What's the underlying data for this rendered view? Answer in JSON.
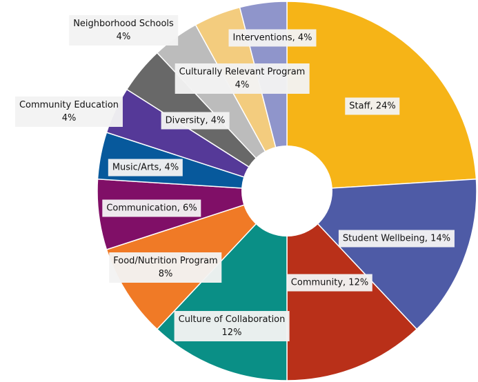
{
  "chart_data": {
    "type": "pie",
    "variant": "donut",
    "title": "",
    "slices": [
      {
        "label": "Staff",
        "value": 24,
        "display": "Staff, 24%",
        "color": "#F6B417"
      },
      {
        "label": "Student Wellbeing",
        "value": 14,
        "display": "Student Wellbeing, 14%",
        "color": "#4E5BA6"
      },
      {
        "label": "Community",
        "value": 12,
        "display": "Community, 12%",
        "color": "#B93019"
      },
      {
        "label": "Culture of Collaboration",
        "value": 12,
        "display": "Culture of Collaboration, 12%",
        "color": "#0A8F86"
      },
      {
        "label": "Food/Nutrition Program",
        "value": 8,
        "display": "Food/Nutrition Program, 8%",
        "color": "#F07A26"
      },
      {
        "label": "Communication",
        "value": 6,
        "display": "Communication, 6%",
        "color": "#800F67"
      },
      {
        "label": "Music/Arts",
        "value": 4,
        "display": "Music/Arts, 4%",
        "color": "#07599C"
      },
      {
        "label": "Community Education",
        "value": 4,
        "display": "Community Education, 4%",
        "color": "#553998"
      },
      {
        "label": "Diversity",
        "value": 4,
        "display": "Diversity, 4%",
        "color": "#686868"
      },
      {
        "label": "Neighborhood Schools",
        "value": 4,
        "display": "Neighborhood Schools, 4%",
        "color": "#BCBCBC"
      },
      {
        "label": "Culturally Relevant Program",
        "value": 4,
        "display": "Culturally Relevant Program, 4%",
        "color": "#F3CC7E"
      },
      {
        "label": "Interventions",
        "value": 4,
        "display": "Interventions, 4%",
        "color": "#8F95CB"
      }
    ]
  }
}
